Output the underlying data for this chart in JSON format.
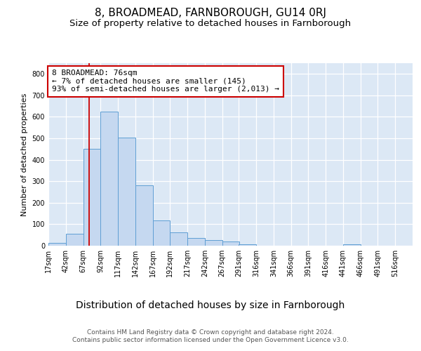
{
  "title": "8, BROADMEAD, FARNBOROUGH, GU14 0RJ",
  "subtitle": "Size of property relative to detached houses in Farnborough",
  "xlabel": "Distribution of detached houses by size in Farnborough",
  "ylabel": "Number of detached properties",
  "bar_color": "#c5d8f0",
  "bar_edge_color": "#5f9fd4",
  "bg_color": "#dce8f5",
  "grid_color": "#ffffff",
  "vline_color": "#cc0000",
  "vline_x": 76,
  "annotation_text": "8 BROADMEAD: 76sqm\n← 7% of detached houses are smaller (145)\n93% of semi-detached houses are larger (2,013) →",
  "annotation_box_color": "#ffffff",
  "annotation_box_edge": "#cc0000",
  "bins_left": [
    17,
    42,
    67,
    92,
    117,
    142,
    167,
    192,
    217,
    242,
    267,
    291,
    316,
    341,
    366,
    391,
    416,
    441,
    466,
    491,
    516
  ],
  "bin_width": 25,
  "bar_heights": [
    12,
    55,
    450,
    625,
    503,
    280,
    118,
    62,
    35,
    25,
    18,
    8,
    0,
    0,
    0,
    0,
    0,
    5,
    0,
    0,
    0
  ],
  "ylim": [
    0,
    850
  ],
  "xlim": [
    17,
    541
  ],
  "yticks": [
    0,
    100,
    200,
    300,
    400,
    500,
    600,
    700,
    800
  ],
  "xtick_labels": [
    "17sqm",
    "42sqm",
    "67sqm",
    "92sqm",
    "117sqm",
    "142sqm",
    "167sqm",
    "192sqm",
    "217sqm",
    "242sqm",
    "267sqm",
    "291sqm",
    "316sqm",
    "341sqm",
    "366sqm",
    "391sqm",
    "416sqm",
    "441sqm",
    "466sqm",
    "491sqm",
    "516sqm"
  ],
  "footer_line1": "Contains HM Land Registry data © Crown copyright and database right 2024.",
  "footer_line2": "Contains public sector information licensed under the Open Government Licence v3.0.",
  "title_fontsize": 11,
  "subtitle_fontsize": 9.5,
  "xlabel_fontsize": 10,
  "ylabel_fontsize": 8,
  "tick_fontsize": 7,
  "annot_fontsize": 8,
  "footer_fontsize": 6.5
}
